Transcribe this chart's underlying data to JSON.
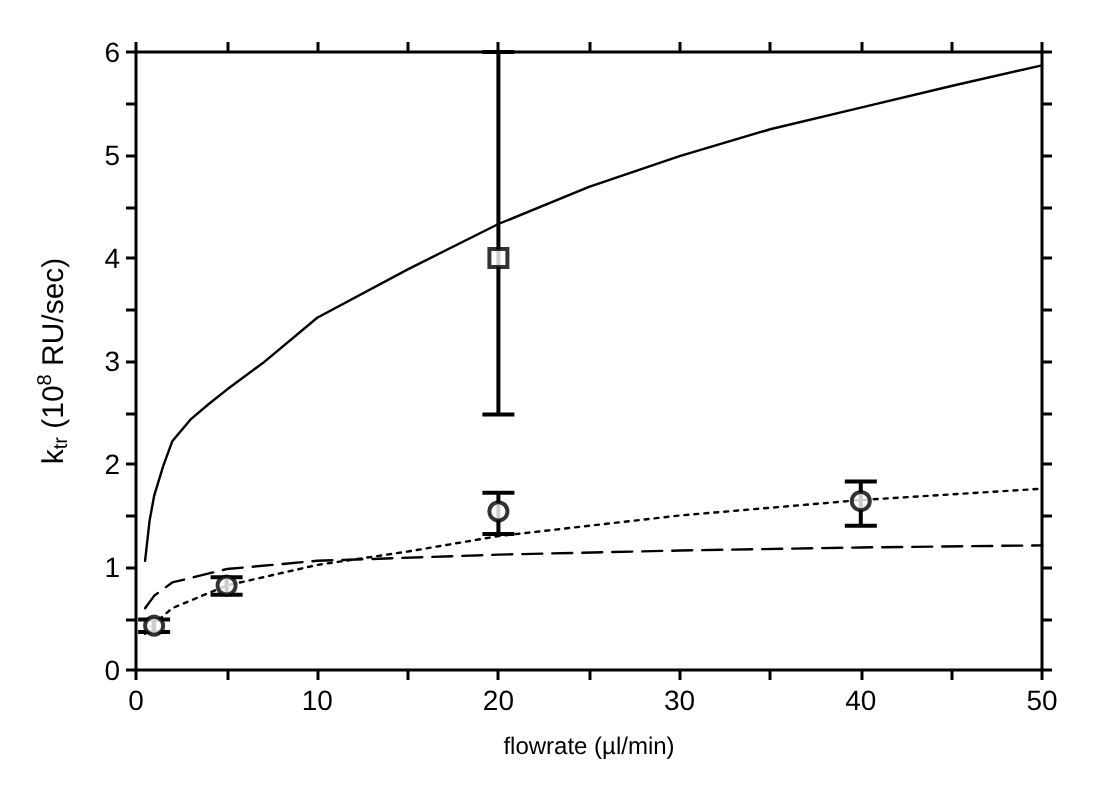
{
  "chart_data": {
    "type": "line",
    "xlabel": "flowrate (µl/min)",
    "ylabel": "k$_{tr}$ (10$^{8}$ RU/sec)",
    "xlim": [
      0,
      50
    ],
    "ylim": [
      0,
      6
    ],
    "xticks": [
      0,
      {
        "value": 5,
        "label": null
      },
      10,
      {
        "value": 15,
        "label": null
      },
      20,
      {
        "value": 25,
        "label": null
      },
      30,
      {
        "value": 35,
        "label": null
      },
      40,
      {
        "value": 45,
        "label": null
      },
      50
    ],
    "yticks": [
      0,
      {
        "value": 0.5,
        "label": null
      },
      1,
      {
        "value": 1.5,
        "label": null
      },
      2,
      {
        "value": 2.5,
        "label": null
      },
      3,
      {
        "value": 3.5,
        "label": null
      },
      4,
      {
        "value": 4.5,
        "label": null
      },
      5,
      {
        "value": 5.5,
        "label": null
      },
      6
    ],
    "grid": false,
    "series": [
      {
        "color": "#000000",
        "marker": "none",
        "line_style": "solid",
        "x": [
          0.5,
          0.75,
          1,
          1.5,
          2,
          3,
          4,
          5,
          7,
          10,
          15,
          20,
          25,
          30,
          35,
          40,
          45,
          50
        ],
        "values": [
          1.06,
          1.45,
          1.69,
          1.98,
          2.22,
          2.43,
          2.58,
          2.72,
          2.98,
          3.42,
          3.89,
          4.33,
          4.69,
          4.99,
          5.25,
          5.46,
          5.67,
          5.87
        ]
      },
      {
        "color": "#000000",
        "marker": "none",
        "line_style": "dotted",
        "x": [
          0.5,
          1,
          2,
          5,
          10,
          15,
          20,
          30,
          40,
          50
        ],
        "values": [
          0.35,
          0.45,
          0.6,
          0.82,
          1.02,
          1.15,
          1.3,
          1.5,
          1.65,
          1.76
        ]
      },
      {
        "color": "#000000",
        "marker": "none",
        "line_style": "dashed",
        "x": [
          0.5,
          1,
          2,
          5,
          10,
          20,
          30,
          40,
          50
        ],
        "values": [
          0.6,
          0.72,
          0.85,
          0.98,
          1.06,
          1.12,
          1.16,
          1.19,
          1.21
        ]
      },
      {
        "type": "scatter",
        "color": "#000000",
        "marker": "circle",
        "x": [
          1,
          5,
          20,
          40
        ],
        "values": [
          0.43,
          0.82,
          1.54,
          1.64
        ],
        "errors": [
          [
            0.37,
            0.49
          ],
          [
            0.73,
            0.9
          ],
          [
            1.32,
            1.72
          ],
          [
            1.4,
            1.83
          ]
        ]
      },
      {
        "type": "scatter",
        "color": "#000000",
        "marker": "square",
        "x": [
          20
        ],
        "values": [
          4.0
        ],
        "errors": [
          [
            2.48,
            6
          ]
        ]
      }
    ]
  }
}
